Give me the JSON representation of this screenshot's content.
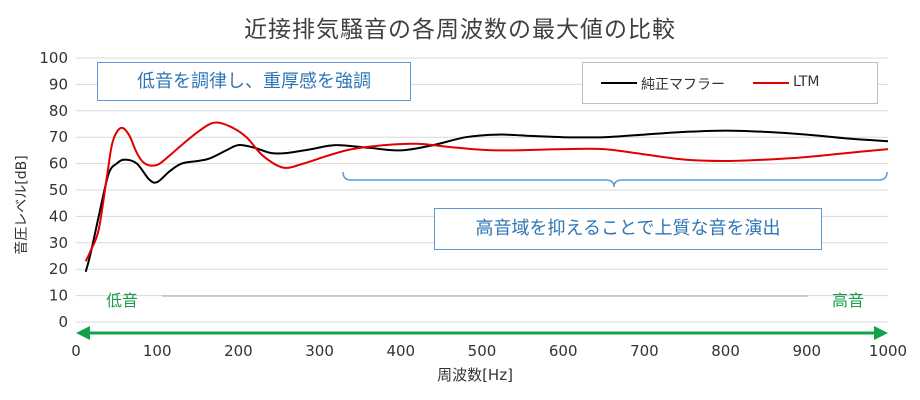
{
  "chart_data": {
    "type": "line",
    "title": "近接排気騒音の各周波数の最大値の比較",
    "xlabel": "周波数[Hz]",
    "ylabel": "音圧レベル[dB]",
    "xlim": [
      0,
      1000
    ],
    "ylim": [
      0,
      100
    ],
    "xticks": [
      0,
      100,
      200,
      300,
      400,
      500,
      600,
      700,
      800,
      900,
      1000
    ],
    "yticks": [
      0,
      10,
      20,
      30,
      40,
      50,
      60,
      70,
      80,
      90,
      100
    ],
    "grid": true,
    "legend_position": "top-right",
    "series": [
      {
        "name": "純正マフラー",
        "color": "#000000",
        "points": [
          [
            12,
            19
          ],
          [
            18,
            26
          ],
          [
            28,
            40
          ],
          [
            40,
            56
          ],
          [
            50,
            60
          ],
          [
            60,
            61.5
          ],
          [
            75,
            60
          ],
          [
            90,
            54
          ],
          [
            100,
            53
          ],
          [
            115,
            57
          ],
          [
            130,
            60
          ],
          [
            150,
            61
          ],
          [
            165,
            62
          ],
          [
            185,
            65
          ],
          [
            200,
            67
          ],
          [
            220,
            66
          ],
          [
            240,
            64
          ],
          [
            260,
            64
          ],
          [
            290,
            65.5
          ],
          [
            320,
            67
          ],
          [
            360,
            66
          ],
          [
            400,
            65
          ],
          [
            440,
            67
          ],
          [
            480,
            70
          ],
          [
            520,
            71
          ],
          [
            560,
            70.5
          ],
          [
            600,
            70
          ],
          [
            650,
            70
          ],
          [
            700,
            71
          ],
          [
            750,
            72
          ],
          [
            800,
            72.5
          ],
          [
            850,
            72
          ],
          [
            900,
            71
          ],
          [
            950,
            69.5
          ],
          [
            1000,
            68.5
          ]
        ]
      },
      {
        "name": "LTM",
        "color": "#e00000",
        "points": [
          [
            12,
            23
          ],
          [
            18,
            27
          ],
          [
            28,
            35
          ],
          [
            38,
            55
          ],
          [
            45,
            68
          ],
          [
            55,
            73.5
          ],
          [
            65,
            71
          ],
          [
            75,
            64
          ],
          [
            85,
            60
          ],
          [
            100,
            59.5
          ],
          [
            115,
            63
          ],
          [
            130,
            67
          ],
          [
            150,
            72
          ],
          [
            170,
            75.5
          ],
          [
            190,
            74
          ],
          [
            210,
            70
          ],
          [
            230,
            63
          ],
          [
            255,
            58.5
          ],
          [
            280,
            60
          ],
          [
            310,
            63
          ],
          [
            340,
            65.5
          ],
          [
            380,
            67
          ],
          [
            420,
            67.5
          ],
          [
            470,
            66
          ],
          [
            520,
            65
          ],
          [
            600,
            65.5
          ],
          [
            650,
            65.5
          ],
          [
            700,
            63.5
          ],
          [
            750,
            61.5
          ],
          [
            800,
            61
          ],
          [
            850,
            61.5
          ],
          [
            900,
            62.5
          ],
          [
            950,
            64
          ],
          [
            1000,
            65.5
          ]
        ]
      }
    ],
    "annotations": {
      "callout_low": "低音を調律し、重厚感を強調",
      "callout_high": "高音域を抑えることで上質な音を演出",
      "low_label": "低音",
      "high_label": "高音"
    }
  }
}
